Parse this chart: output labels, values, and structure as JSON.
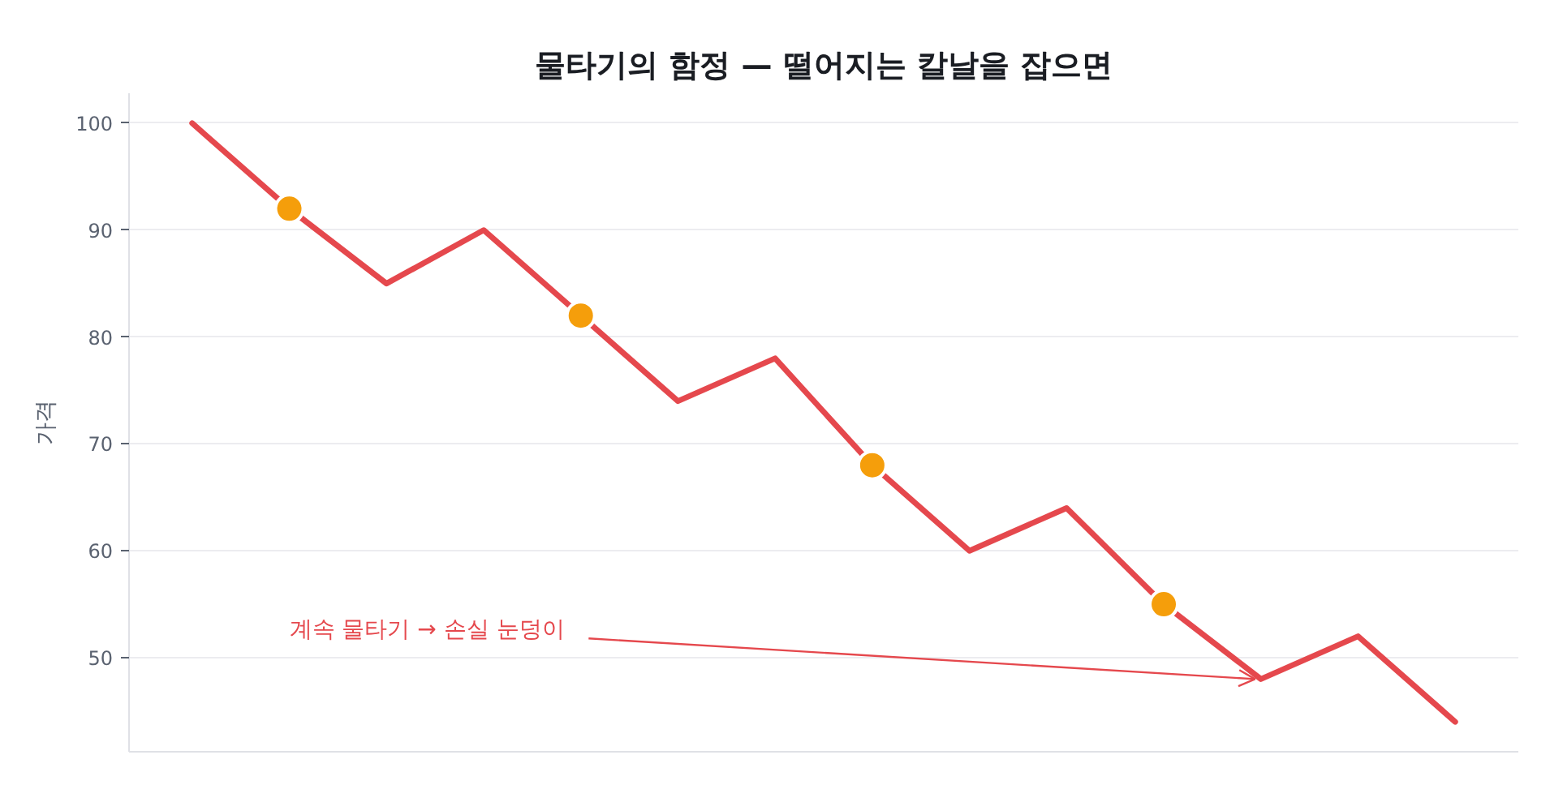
{
  "chart_data": {
    "type": "line",
    "title": "물타기의 함정 — 떨어지는 칼날을 잡으면",
    "ylabel": "가격",
    "categories": [
      null,
      null,
      null,
      null,
      null,
      null,
      null,
      null,
      null,
      null,
      null,
      null,
      null,
      null
    ],
    "series": [
      {
        "color": "#e5484d",
        "values": [
          100,
          92,
          85,
          90,
          82,
          74,
          78,
          68,
          60,
          64,
          55,
          48,
          52,
          44
        ]
      },
      {
        "type": "scatter",
        "color": "#f59e0b",
        "marker": "circle",
        "values": [
          null,
          92,
          null,
          null,
          82,
          null,
          null,
          68,
          null,
          null,
          55,
          null,
          null,
          null
        ]
      }
    ],
    "ylim": [
      41.2,
      102.8
    ],
    "yticks": [
      50,
      60,
      70,
      80,
      90,
      100
    ],
    "grid": "y",
    "tick_labels": "y",
    "annotations": [
      "계속 물타기 → 손실 눈덩이"
    ]
  }
}
